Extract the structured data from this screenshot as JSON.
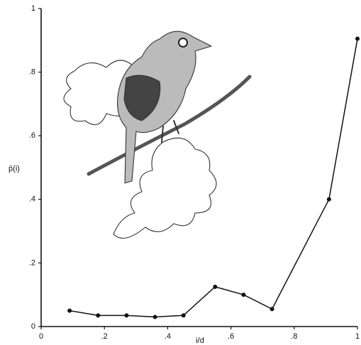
{
  "chart_data": {
    "type": "line",
    "x_label": "i/d",
    "y_label": "p̄(i)",
    "x": [
      0.09,
      0.18,
      0.27,
      0.36,
      0.45,
      0.55,
      0.64,
      0.73,
      0.91,
      1.0
    ],
    "values": [
      0.05,
      0.035,
      0.035,
      0.03,
      0.035,
      0.125,
      0.1,
      0.055,
      0.4,
      0.905
    ],
    "color": "#111111",
    "xlim": [
      0,
      1
    ],
    "ylim": [
      0,
      1
    ],
    "xticks": [
      0,
      {
        "value": 0.2,
        "label": ".2"
      },
      {
        "value": 0.4,
        "label": ".4"
      },
      {
        "value": 0.6,
        "label": ".6"
      },
      {
        "value": 0.8,
        "label": ".8"
      },
      1
    ],
    "yticks": [
      0,
      {
        "value": 0.2,
        "label": ".2"
      },
      {
        "value": 0.4,
        "label": ".4"
      },
      {
        "value": 0.6,
        "label": ".6"
      },
      {
        "value": 0.8,
        "label": ".8"
      },
      1
    ]
  }
}
